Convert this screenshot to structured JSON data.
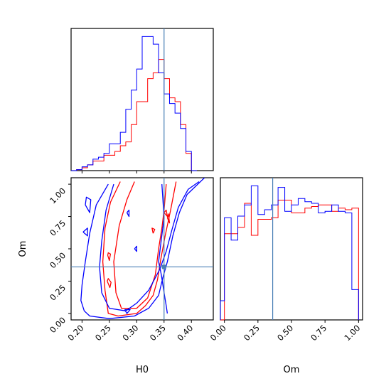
{
  "chart_data": {
    "type": "corner",
    "parameters": [
      "H0",
      "Om"
    ],
    "truth": {
      "H0": 0.35,
      "Om": 0.36
    },
    "truth_color": "#4a7fb5",
    "series": [
      {
        "color": "#ff0000"
      },
      {
        "color": "#0000ff"
      }
    ],
    "panels": {
      "H0_hist": {
        "xlim": [
          0.18,
          0.44
        ],
        "bin_edges": [
          0.18,
          0.19,
          0.2,
          0.21,
          0.22,
          0.23,
          0.24,
          0.25,
          0.26,
          0.27,
          0.28,
          0.29,
          0.3,
          0.31,
          0.32,
          0.33,
          0.34,
          0.35,
          0.36,
          0.37,
          0.38,
          0.39,
          0.4,
          0.41
        ],
        "red_counts": [
          0,
          0.5,
          1.5,
          3,
          5,
          5,
          8,
          8,
          10,
          13,
          15,
          24,
          36,
          36,
          48,
          51,
          58,
          48,
          38,
          36,
          24,
          9,
          0
        ],
        "blue_counts": [
          0,
          0.5,
          2,
          3,
          6,
          7,
          9,
          14,
          14,
          20,
          32,
          42,
          53,
          70,
          70,
          66,
          51,
          40,
          35,
          30,
          22,
          10,
          0
        ]
      },
      "Om_hist": {
        "xlim": [
          -0.03,
          1.03
        ],
        "xticks": [
          "0.00",
          "0.25",
          "0.50",
          "0.75",
          "1.00"
        ],
        "xlabel": "Om",
        "bin_edges": [
          -0.03,
          0.0,
          0.05,
          0.1,
          0.15,
          0.2,
          0.25,
          0.3,
          0.35,
          0.4,
          0.45,
          0.5,
          0.55,
          0.6,
          0.65,
          0.7,
          0.75,
          0.8,
          0.85,
          0.9,
          0.95,
          1.0
        ],
        "red_counts": [
          0,
          54,
          54,
          58,
          73,
          53,
          63,
          63,
          64,
          75,
          75,
          67,
          67,
          70,
          71,
          72,
          72,
          68,
          70,
          69,
          70
        ],
        "blue_counts": [
          12,
          64,
          50,
          65,
          72,
          84,
          66,
          69,
          72,
          83,
          68,
          72,
          76,
          74,
          73,
          67,
          68,
          72,
          68,
          67,
          19
        ]
      },
      "joint": {
        "xlim": [
          0.18,
          0.44
        ],
        "ylim": [
          -0.05,
          1.05
        ],
        "xticks": [
          "0.20",
          "0.25",
          "0.30",
          "0.35",
          "0.40"
        ],
        "yticks": [
          "0.00",
          "0.25",
          "0.50",
          "0.75",
          "1.00"
        ],
        "xlabel": "H0",
        "ylabel": "Om",
        "red_contours": [
          [
            [
              0.27,
              1.02
            ],
            [
              0.252,
              0.86
            ],
            [
              0.242,
              0.66
            ],
            [
              0.238,
              0.4
            ],
            [
              0.242,
              0.18
            ],
            [
              0.248,
              0.0
            ],
            [
              0.266,
              -0.02
            ],
            [
              0.3,
              0.0
            ],
            [
              0.316,
              0.06
            ],
            [
              0.33,
              0.14
            ],
            [
              0.338,
              0.26
            ],
            [
              0.344,
              0.42
            ],
            [
              0.352,
              0.6
            ],
            [
              0.362,
              0.8
            ],
            [
              0.372,
              1.02
            ]
          ],
          [
            [
              0.296,
              1.02
            ],
            [
              0.282,
              0.88
            ],
            [
              0.268,
              0.68
            ],
            [
              0.258,
              0.4
            ],
            [
              0.262,
              0.16
            ],
            [
              0.272,
              0.04
            ],
            [
              0.3,
              0.04
            ],
            [
              0.32,
              0.12
            ],
            [
              0.334,
              0.3
            ],
            [
              0.34,
              0.5
            ],
            [
              0.346,
              0.66
            ],
            [
              0.35,
              0.8
            ],
            [
              0.354,
              1.0
            ]
          ],
          [
            [
              0.246,
              0.25
            ],
            [
              0.251,
              0.2
            ],
            [
              0.253,
              0.24
            ],
            [
              0.248,
              0.27
            ],
            [
              0.246,
              0.25
            ]
          ],
          [
            [
              0.247,
              0.45
            ],
            [
              0.25,
              0.41
            ],
            [
              0.252,
              0.46
            ],
            [
              0.248,
              0.47
            ],
            [
              0.247,
              0.45
            ]
          ],
          [
            [
              0.35,
              0.78
            ],
            [
              0.356,
              0.75
            ],
            [
              0.354,
              0.8
            ],
            [
              0.35,
              0.78
            ]
          ],
          [
            [
              0.33,
              0.62
            ],
            [
              0.333,
              0.65
            ],
            [
              0.328,
              0.66
            ],
            [
              0.33,
              0.62
            ]
          ],
          [
            [
              0.356,
              0.74
            ],
            [
              0.36,
              0.7
            ],
            [
              0.358,
              0.77
            ],
            [
              0.356,
              0.74
            ]
          ]
        ],
        "blue_contours": [
          [
            [
              0.248,
              1.0
            ],
            [
              0.226,
              0.84
            ],
            [
              0.214,
              0.62
            ],
            [
              0.206,
              0.4
            ],
            [
              0.2,
              0.22
            ],
            [
              0.198,
              0.1
            ],
            [
              0.204,
              0.02
            ],
            [
              0.214,
              -0.02
            ],
            [
              0.25,
              -0.04
            ],
            [
              0.296,
              -0.02
            ],
            [
              0.322,
              0.04
            ],
            [
              0.34,
              0.14
            ],
            [
              0.348,
              0.28
            ],
            [
              0.356,
              0.4
            ],
            [
              0.366,
              0.6
            ],
            [
              0.378,
              0.78
            ],
            [
              0.392,
              0.92
            ],
            [
              0.424,
              1.05
            ]
          ],
          [
            [
              0.258,
              1.0
            ],
            [
              0.244,
              0.8
            ],
            [
              0.236,
              0.56
            ],
            [
              0.232,
              0.36
            ],
            [
              0.236,
              0.16
            ],
            [
              0.25,
              0.04
            ],
            [
              0.28,
              0.02
            ],
            [
              0.3,
              0.08
            ],
            [
              0.322,
              0.18
            ],
            [
              0.342,
              0.34
            ],
            [
              0.354,
              0.48
            ],
            [
              0.364,
              0.64
            ],
            [
              0.376,
              0.82
            ],
            [
              0.394,
              0.96
            ],
            [
              0.414,
              1.02
            ]
          ],
          [
            [
              0.346,
              1.0
            ],
            [
              0.35,
              0.74
            ],
            [
              0.344,
              0.54
            ],
            [
              0.34,
              0.4
            ],
            [
              0.345,
              0.3
            ],
            [
              0.35,
              0.16
            ],
            [
              0.354,
              0.06
            ],
            [
              0.356,
              0.0
            ]
          ],
          [
            [
              0.206,
              0.84
            ],
            [
              0.214,
              0.78
            ],
            [
              0.216,
              0.88
            ],
            [
              0.208,
              0.9
            ],
            [
              0.206,
              0.84
            ]
          ],
          [
            [
              0.202,
              0.63
            ],
            [
              0.21,
              0.6
            ],
            [
              0.21,
              0.66
            ],
            [
              0.202,
              0.63
            ]
          ],
          [
            [
              0.282,
              0.78
            ],
            [
              0.286,
              0.75
            ],
            [
              0.286,
              0.8
            ],
            [
              0.282,
              0.78
            ]
          ],
          [
            [
              0.296,
              0.5
            ],
            [
              0.3,
              0.48
            ],
            [
              0.3,
              0.52
            ],
            [
              0.296,
              0.5
            ]
          ],
          [
            [
              0.278,
              0.03
            ],
            [
              0.282,
              0.0
            ],
            [
              0.288,
              0.03
            ],
            [
              0.278,
              0.03
            ]
          ]
        ]
      }
    }
  }
}
